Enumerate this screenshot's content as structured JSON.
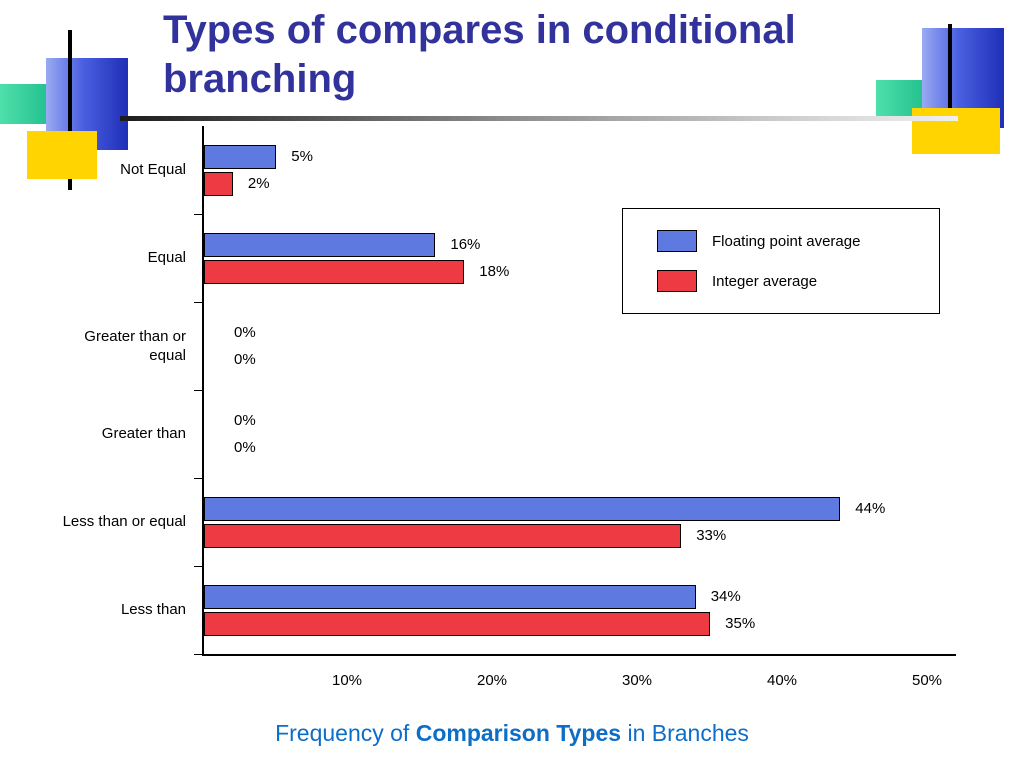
{
  "slide": {
    "title": "Types of compares in conditional branching",
    "caption": {
      "prefix": "Frequency of ",
      "bold": "Comparison Types",
      "suffix": " in Branches"
    }
  },
  "colors": {
    "title": "#31329b",
    "caption": "#0d6ec7"
  },
  "chart_data": {
    "type": "bar",
    "orientation": "horizontal",
    "title": "Types of compares in conditional branching",
    "caption": "Frequency of Comparison Types in Branches",
    "categories": [
      "Not Equal",
      "Equal",
      "Greater than or equal",
      "Greater than",
      "Less than or equal",
      "Less than"
    ],
    "series": [
      {
        "name": "Floating point average",
        "color": "#5e7ae0",
        "values": [
          5,
          16,
          0,
          0,
          44,
          34
        ]
      },
      {
        "name": "Integer average",
        "color": "#ee3b43",
        "values": [
          2,
          18,
          0,
          0,
          33,
          35
        ]
      }
    ],
    "value_label_format": "{v}%",
    "xtick_values": [
      10,
      20,
      30,
      40,
      50
    ],
    "xtick_labels": [
      "10%",
      "20%",
      "30%",
      "40%",
      "50%"
    ],
    "xlim": [
      0,
      52
    ],
    "ylabel": "",
    "xlabel": "",
    "grid": false,
    "legend_position": "upper right"
  }
}
